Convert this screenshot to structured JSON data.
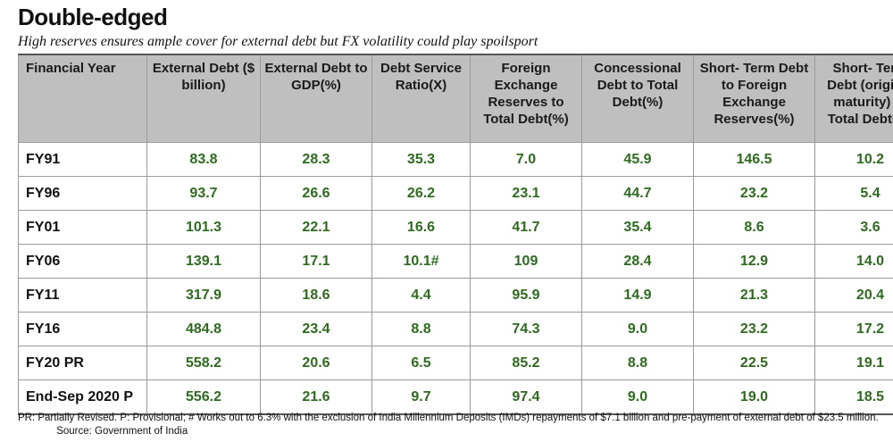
{
  "title": "Double-edged",
  "subtitle": "High reserves ensures ample cover for external debt but FX volatility could play spoilsport",
  "chart_data": {
    "type": "table",
    "columns": [
      "Financial Year",
      "External Debt ($ billion)",
      "External Debt to GDP(%)",
      "Debt Service Ratio(X)",
      "Foreign Exchange Reserves to Total Debt(%)",
      "Concessional Debt to Total Debt(%)",
      "Short- Term Debt to Foreign Exchange Reserves(%)",
      "Short- Term Debt (original maturity) to Total Debt(%)"
    ],
    "rows": [
      [
        "FY91",
        "83.8",
        "28.3",
        "35.3",
        "7.0",
        "45.9",
        "146.5",
        "10.2"
      ],
      [
        "FY96",
        "93.7",
        "26.6",
        "26.2",
        "23.1",
        "44.7",
        "23.2",
        "5.4"
      ],
      [
        "FY01",
        "101.3",
        "22.1",
        "16.6",
        "41.7",
        "35.4",
        "8.6",
        "3.6"
      ],
      [
        "FY06",
        "139.1",
        "17.1",
        "10.1#",
        "109",
        "28.4",
        "12.9",
        "14.0"
      ],
      [
        "FY11",
        "317.9",
        "18.6",
        "4.4",
        "95.9",
        "14.9",
        "21.3",
        "20.4"
      ],
      [
        "FY16",
        "484.8",
        "23.4",
        "8.8",
        "74.3",
        "9.0",
        "23.2",
        "17.2"
      ],
      [
        "FY20 PR",
        "558.2",
        "20.6",
        "6.5",
        "85.2",
        "8.8",
        "22.5",
        "19.1"
      ],
      [
        "End-Sep 2020 P",
        "556.2",
        "21.6",
        "9.7",
        "97.4",
        "9.0",
        "19.0",
        "18.5"
      ]
    ]
  },
  "footnote": "PR: Partially Revised. P: Provisional; # Works out to 6.3% with the exclusion of India Millennium Deposits (IMDs) repayments of $7.1 billion and pre-payment of external debt of $23.5 million.",
  "source": "Source: Government of India",
  "colors": {
    "header_bg": "#bfbfbf",
    "value_text": "#2e6b1f",
    "grid": "#9a9a9a"
  }
}
